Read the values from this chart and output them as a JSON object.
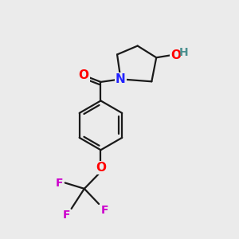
{
  "background_color": "#ebebeb",
  "bond_color": "#1a1a1a",
  "bond_width": 1.6,
  "font_size": 10,
  "colors": {
    "O": "#ff0000",
    "N": "#2222ff",
    "F": "#cc00cc",
    "C": "#1a1a1a",
    "H": "#4a9090"
  },
  "figsize": [
    3.0,
    3.0
  ],
  "dpi": 100,
  "xlim": [
    0,
    10
  ],
  "ylim": [
    0,
    10
  ]
}
